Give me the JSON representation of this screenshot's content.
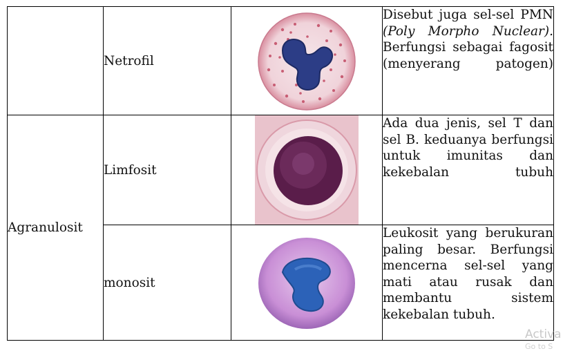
{
  "rows": [
    {
      "name": "Netrofil",
      "desc_parts": [
        "Disebut juga sel-sel PMN ",
        "(Poly Morpho Nuclear).",
        " Berfungsi sebagai fagosit (menyerang patogen)"
      ],
      "image_icon": "neutrophil-cell-image"
    },
    {
      "group": "Agranulosit",
      "name": "Limfosit",
      "desc": "Ada dua jenis, sel T dan sel B. keduanya berfungsi untuk imunitas dan kekebalan tubuh",
      "image_icon": "lymphocyte-cell-image"
    },
    {
      "name": "monosit",
      "desc": "Leukosit yang berukuran paling besar. Berfungsi mencerna sel-sel yang mati atau rusak dan membantu sistem kekebalan tubuh.",
      "image_icon": "monocyte-cell-image"
    }
  ],
  "watermark": "Activa",
  "watermark2": "Go to S"
}
